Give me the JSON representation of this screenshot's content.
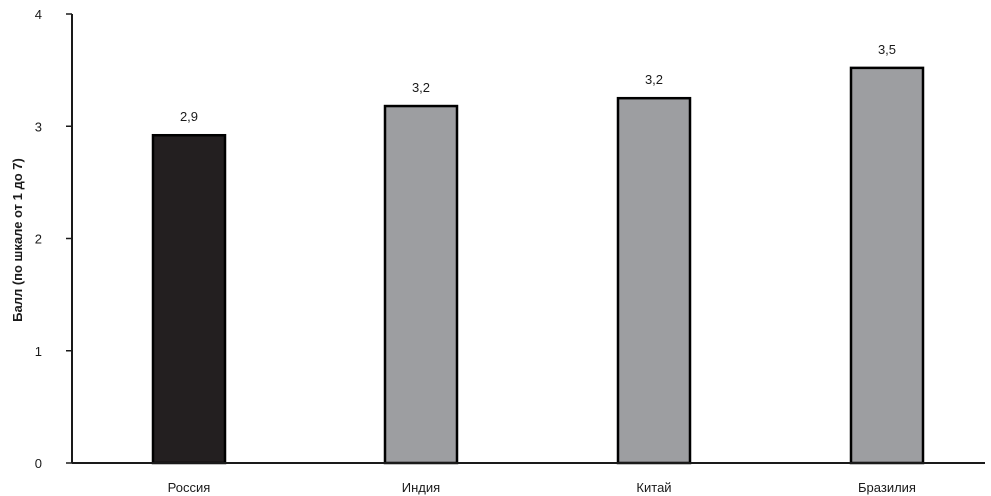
{
  "chart_data": {
    "type": "bar",
    "title": "",
    "xlabel": "",
    "ylabel": "Балл (по шкале от 1 до 7)",
    "ylim": [
      0,
      4
    ],
    "yticks": [
      "0",
      "1",
      "2",
      "3",
      "4"
    ],
    "categories": [
      "Россия",
      "Индия",
      "Китай",
      "Бразилия"
    ],
    "values": [
      2.92,
      3.18,
      3.25,
      3.52
    ],
    "value_labels": [
      "2,9",
      "3,2",
      "3,2",
      "3,5"
    ],
    "bar_colors": [
      "#231f20",
      "#9d9ea1",
      "#9d9ea1",
      "#9d9ea1"
    ],
    "grid": false,
    "legend": "none"
  }
}
